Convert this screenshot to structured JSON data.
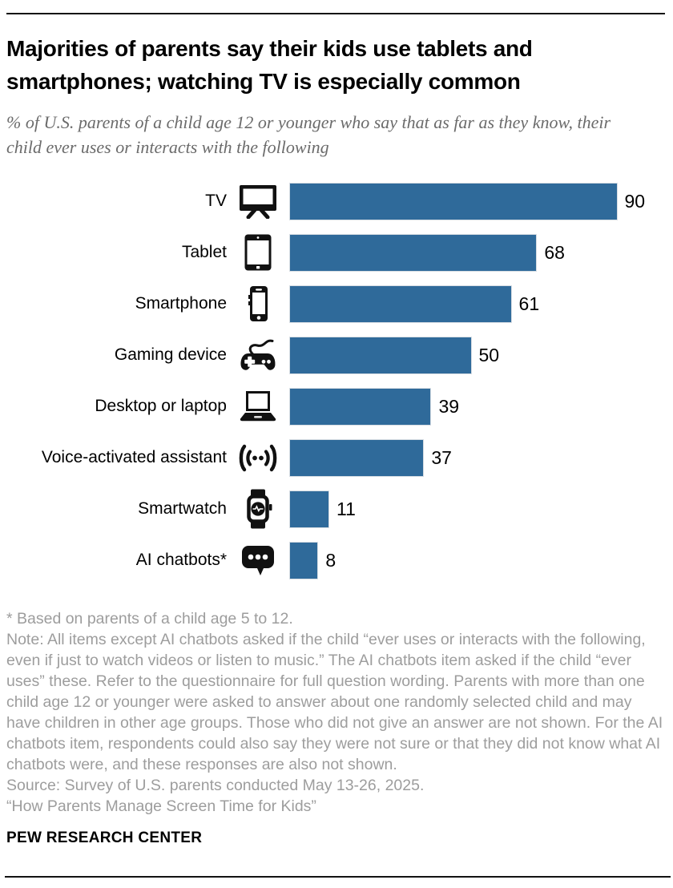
{
  "header": {
    "title": "Majorities of parents say their kids use tablets and smartphones; watching TV is especially common",
    "subtitle": "% of U.S. parents of a child age 12 or younger who say that as far as they know, their child ever uses or interacts with the following"
  },
  "chart_data": {
    "type": "bar",
    "orientation": "horizontal",
    "categories": [
      "TV",
      "Tablet",
      "Smartphone",
      "Gaming device",
      "Desktop or laptop",
      "Voice-activated assistant",
      "Smartwatch",
      "AI chatbots*"
    ],
    "values": [
      90,
      68,
      61,
      50,
      39,
      37,
      11,
      8
    ],
    "icons": [
      "tv-icon",
      "tablet-icon",
      "smartphone-icon",
      "gamepad-icon",
      "laptop-icon",
      "voice-assistant-icon",
      "smartwatch-icon",
      "chat-bubble-icon"
    ],
    "xlim": [
      0,
      100
    ],
    "grid": false,
    "legend": "none",
    "value_labels_shown": true,
    "bar_color": "#2F6A9A",
    "icon_color": "#111111"
  },
  "footer": {
    "footnote": "* Based on parents of a child age 5 to 12.",
    "note": "Note: All items except AI chatbots asked if the child “ever uses or interacts with the following, even if just to watch videos or listen to music.” The AI chatbots item asked if the child “ever uses” these. Refer to the questionnaire for full question wording. Parents with more than one child age 12 or younger were asked to answer about one randomly selected child and may have children in other age groups. Those who did not give an answer are not shown. For the AI chatbots item, respondents could also say they were not sure or that they did not know what AI chatbots were, and these responses are also not shown.",
    "source": "Source: Survey of U.S. parents conducted May 13-26, 2025.",
    "report_title": "“How Parents Manage Screen Time for Kids”",
    "branding": "PEW RESEARCH CENTER"
  }
}
